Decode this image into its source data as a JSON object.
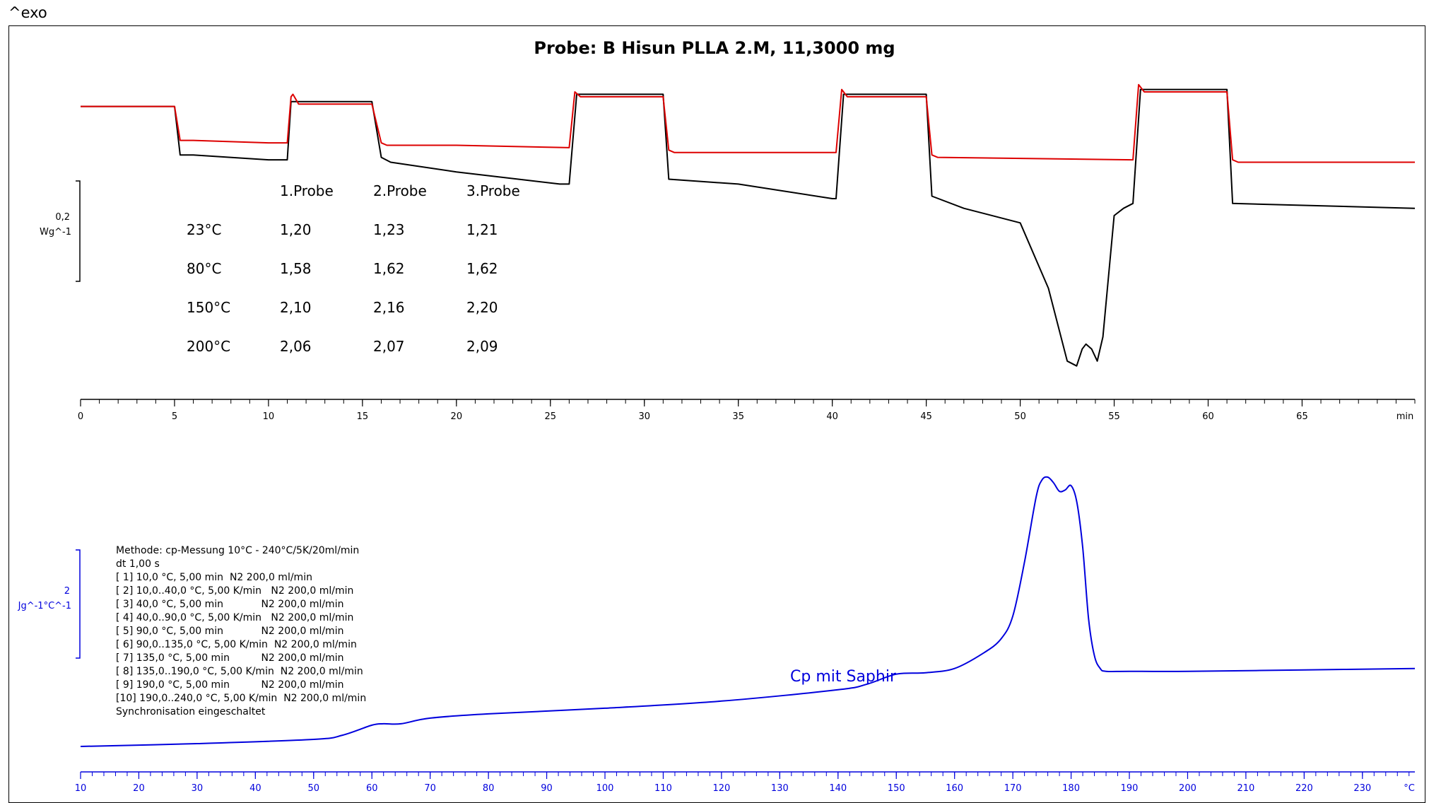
{
  "exo_label": "^exo",
  "chart_data": [
    {
      "type": "line",
      "title": "Probe: B Hisun PLLA 2.M, 11,3000 mg",
      "x_unit": "min",
      "xlim": [
        0,
        71
      ],
      "x_ticks": [
        0,
        5,
        10,
        15,
        20,
        25,
        30,
        35,
        40,
        45,
        50,
        55,
        60,
        65
      ],
      "scale_bar": {
        "value": "0,2",
        "unit": "Wg^-1"
      },
      "ylim": [
        -1.1,
        0.06
      ],
      "series": [
        {
          "color": "#000000",
          "x": [
            0,
            5,
            5.3,
            6,
            10,
            11.0,
            11.2,
            15.5,
            16,
            16.5,
            20,
            25.5,
            26.0,
            26.4,
            31.0,
            31.3,
            35,
            40,
            40.2,
            40.6,
            45,
            45.3,
            47,
            50,
            51.5,
            52.5,
            53.0,
            53.3,
            53.5,
            53.8,
            54.1,
            54.4,
            55.0,
            55.5,
            56.0,
            56.4,
            61.0,
            61.3,
            71
          ],
          "values": [
            0.0,
            0.0,
            -0.2,
            -0.2,
            -0.22,
            -0.22,
            0.02,
            0.02,
            -0.21,
            -0.23,
            -0.27,
            -0.32,
            -0.32,
            0.05,
            0.05,
            -0.3,
            -0.32,
            -0.38,
            -0.38,
            0.05,
            0.05,
            -0.37,
            -0.42,
            -0.48,
            -0.75,
            -1.05,
            -1.07,
            -1.0,
            -0.98,
            -1.0,
            -1.05,
            -0.95,
            -0.45,
            -0.42,
            -0.4,
            0.07,
            0.07,
            -0.4,
            -0.42
          ]
        },
        {
          "color": "#dd0000",
          "x": [
            0,
            5,
            5.3,
            6,
            10,
            11.0,
            11.2,
            11.3,
            11.6,
            15.5,
            16,
            16.3,
            20,
            26.0,
            26.3,
            26.6,
            31.0,
            31.3,
            31.6,
            40.2,
            40.5,
            40.8,
            45,
            45.3,
            45.6,
            56.0,
            56.3,
            56.6,
            61.0,
            61.3,
            61.6,
            71
          ],
          "values": [
            0.0,
            0.0,
            -0.14,
            -0.14,
            -0.15,
            -0.15,
            0.04,
            0.05,
            0.01,
            0.01,
            -0.15,
            -0.16,
            -0.16,
            -0.17,
            0.06,
            0.04,
            0.04,
            -0.18,
            -0.19,
            -0.19,
            0.07,
            0.04,
            0.04,
            -0.2,
            -0.21,
            -0.22,
            0.09,
            0.06,
            0.06,
            -0.22,
            -0.23,
            -0.23
          ]
        }
      ]
    },
    {
      "type": "line",
      "x_unit": "°C",
      "xlim": [
        10,
        239
      ],
      "x_ticks": [
        10,
        20,
        30,
        40,
        50,
        60,
        70,
        80,
        90,
        100,
        110,
        120,
        130,
        140,
        150,
        160,
        170,
        180,
        190,
        200,
        210,
        220,
        230
      ],
      "scale_bar": {
        "value": "2",
        "unit": "Jg^-1°C^-1"
      },
      "ylim": [
        0,
        10
      ],
      "annotations": [
        "Cp mit Saphir"
      ],
      "series": [
        {
          "color": "#0000dd",
          "x": [
            10,
            30,
            50,
            55,
            60,
            62,
            65,
            70,
            80,
            100,
            120,
            140,
            145,
            150,
            155,
            160,
            165,
            168,
            170,
            172,
            174,
            175,
            176,
            177,
            178,
            179,
            180,
            181,
            182,
            183,
            184,
            185,
            186,
            190,
            200,
            220,
            239
          ],
          "values": [
            0.0,
            0.1,
            0.25,
            0.4,
            0.75,
            0.8,
            0.8,
            1.0,
            1.15,
            1.35,
            1.6,
            2.0,
            2.2,
            2.55,
            2.6,
            2.75,
            3.3,
            3.8,
            4.6,
            6.5,
            8.8,
            9.4,
            9.5,
            9.3,
            9.0,
            9.05,
            9.2,
            8.6,
            7.0,
            4.5,
            3.2,
            2.75,
            2.65,
            2.65,
            2.65,
            2.7,
            2.75
          ]
        }
      ]
    }
  ],
  "results_table": {
    "headers": [
      "",
      "1.Probe",
      "2.Probe",
      "3.Probe"
    ],
    "rows": [
      [
        "23°C",
        "1,20",
        "1,23",
        "1,21"
      ],
      [
        "80°C",
        "1,58",
        "1,62",
        "1,62"
      ],
      [
        "150°C",
        "2,10",
        "2,16",
        "2,20"
      ],
      [
        "200°C",
        "2,06",
        "2,07",
        "2,09"
      ]
    ]
  },
  "method_lines": [
    "Methode: cp-Messung 10°C - 240°C/5K/20ml/min",
    "dt 1,00 s",
    "[ 1] 10,0 °C, 5,00 min  N2 200,0 ml/min",
    "[ 2] 10,0..40,0 °C, 5,00 K/min   N2 200,0 ml/min",
    "[ 3] 40,0 °C, 5,00 min            N2 200,0 ml/min",
    "[ 4] 40,0..90,0 °C, 5,00 K/min   N2 200,0 ml/min",
    "[ 5] 90,0 °C, 5,00 min            N2 200,0 ml/min",
    "[ 6] 90,0..135,0 °C, 5,00 K/min  N2 200,0 ml/min",
    "[ 7] 135,0 °C, 5,00 min          N2 200,0 ml/min",
    "[ 8] 135,0..190,0 °C, 5,00 K/min  N2 200,0 ml/min",
    "[ 9] 190,0 °C, 5,00 min          N2 200,0 ml/min",
    "[10] 190,0..240,0 °C, 5,00 K/min  N2 200,0 ml/min",
    "Synchronisation eingeschaltet"
  ]
}
